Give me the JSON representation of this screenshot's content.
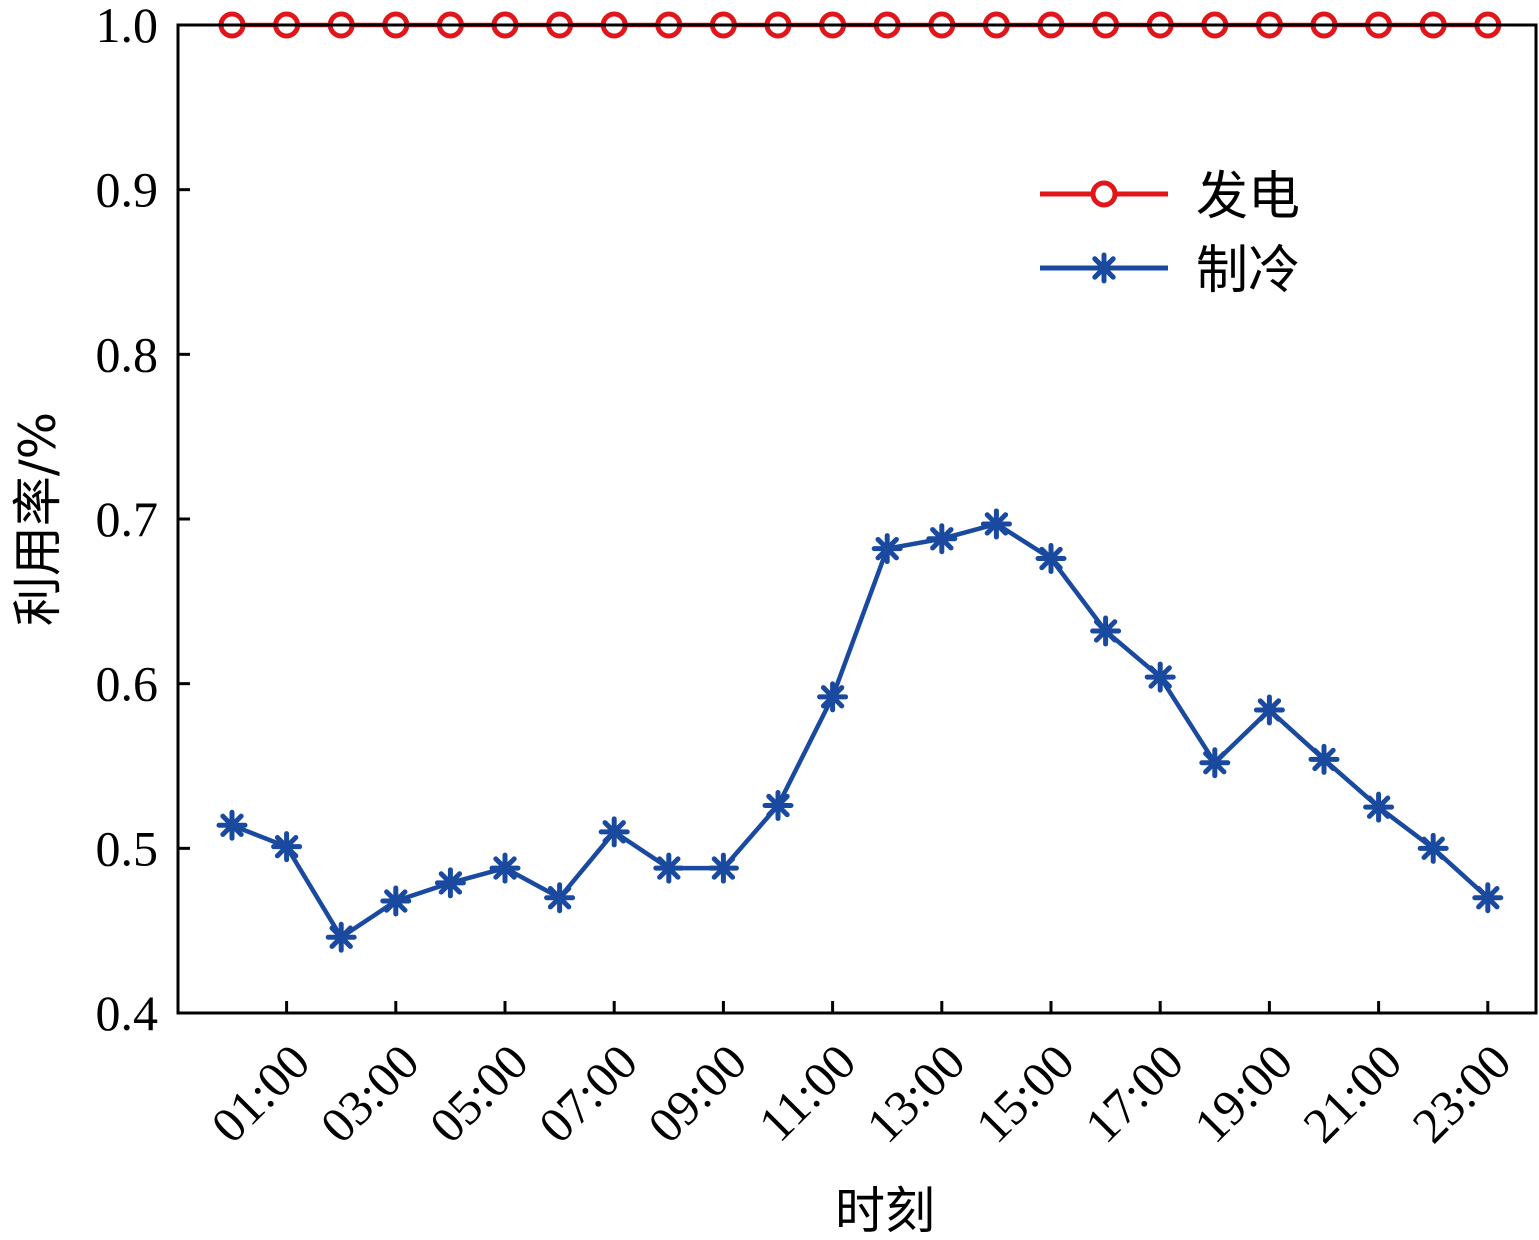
{
  "chart_data": {
    "type": "line",
    "xlabel": "时刻",
    "ylabel": "利用率/%",
    "ylim": [
      0.4,
      1.0
    ],
    "yticks": [
      "0.4",
      "0.5",
      "0.6",
      "0.7",
      "0.8",
      "0.9",
      "1.0"
    ],
    "x_tick_labels": [
      "01:00",
      "03:00",
      "05:00",
      "07:00",
      "09:00",
      "11:00",
      "13:00",
      "15:00",
      "17:00",
      "19:00",
      "21:00",
      "23:00"
    ],
    "x": [
      "00:00",
      "01:00",
      "02:00",
      "03:00",
      "04:00",
      "05:00",
      "06:00",
      "07:00",
      "08:00",
      "09:00",
      "10:00",
      "11:00",
      "12:00",
      "13:00",
      "14:00",
      "15:00",
      "16:00",
      "17:00",
      "18:00",
      "19:00",
      "20:00",
      "21:00",
      "22:00",
      "23:00"
    ],
    "series": [
      {
        "name": "发电",
        "color": "#e0161b",
        "marker": "circle",
        "values": [
          1.0,
          1.0,
          1.0,
          1.0,
          1.0,
          1.0,
          1.0,
          1.0,
          1.0,
          1.0,
          1.0,
          1.0,
          1.0,
          1.0,
          1.0,
          1.0,
          1.0,
          1.0,
          1.0,
          1.0,
          1.0,
          1.0,
          1.0,
          1.0
        ]
      },
      {
        "name": "制冷",
        "color": "#1a4aa0",
        "marker": "asterisk",
        "values": [
          0.514,
          0.501,
          0.446,
          0.468,
          0.479,
          0.488,
          0.47,
          0.51,
          0.488,
          0.488,
          0.526,
          0.592,
          0.682,
          0.688,
          0.697,
          0.676,
          0.632,
          0.604,
          0.552,
          0.584,
          0.554,
          0.525,
          0.5,
          0.47
        ]
      }
    ],
    "legend_position": "upper-right",
    "grid": false
  }
}
